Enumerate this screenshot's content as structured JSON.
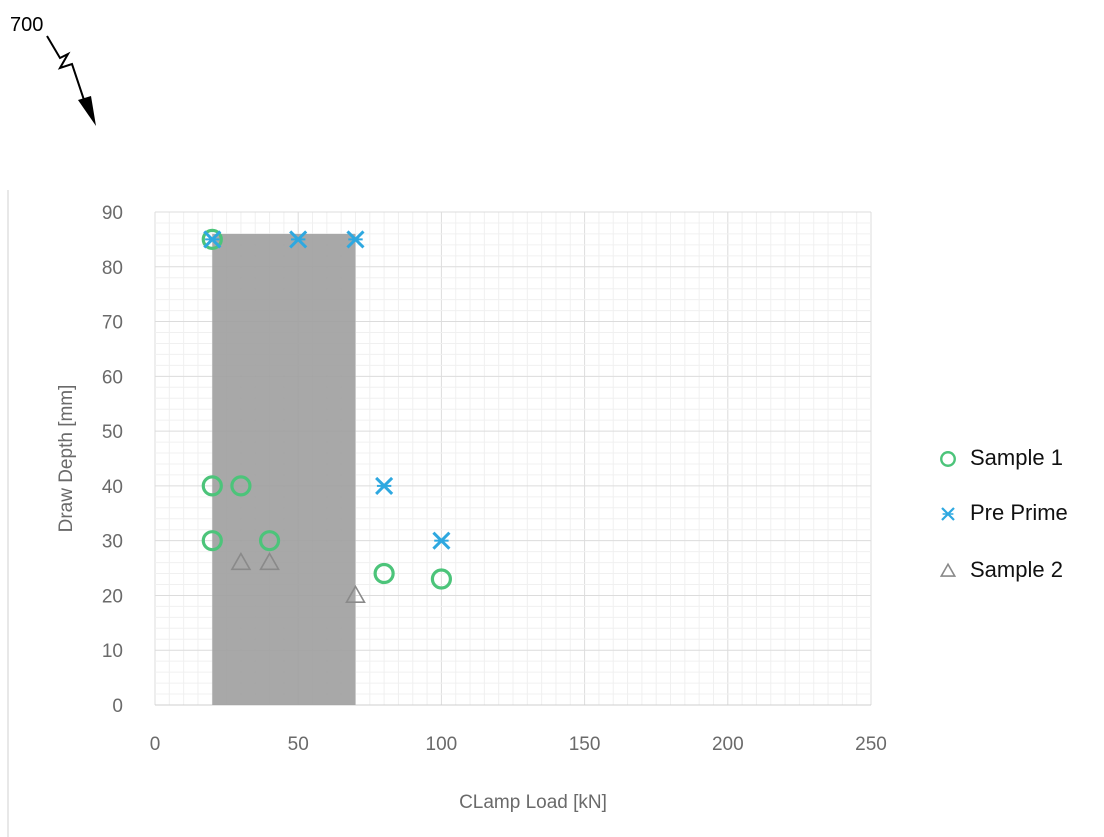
{
  "figure_label": "700",
  "chart_data": {
    "type": "scatter",
    "xlabel": "CLamp Load [kN]",
    "ylabel": "Draw Depth [mm]",
    "xlim": [
      0,
      250
    ],
    "ylim": [
      0,
      90
    ],
    "xticks": [
      0,
      50,
      100,
      150,
      200,
      250
    ],
    "yticks": [
      0,
      10,
      20,
      30,
      40,
      50,
      60,
      70,
      80,
      90
    ],
    "grid": true,
    "legend_position": "right",
    "shaded_region": {
      "x": [
        20,
        70
      ],
      "y": [
        0,
        86
      ],
      "color": "#9e9e9e"
    },
    "series": [
      {
        "name": "Sample 1",
        "marker": "circle",
        "color": "#4cc47a",
        "points": [
          [
            20,
            85
          ],
          [
            20,
            40
          ],
          [
            30,
            40
          ],
          [
            20,
            30
          ],
          [
            40,
            30
          ],
          [
            80,
            24
          ],
          [
            100,
            23
          ]
        ]
      },
      {
        "name": "Pre Prime",
        "marker": "star",
        "color": "#2ea8e0",
        "points": [
          [
            20,
            85
          ],
          [
            50,
            85
          ],
          [
            70,
            85
          ],
          [
            80,
            40
          ],
          [
            100,
            30
          ]
        ]
      },
      {
        "name": "Sample 2",
        "marker": "triangle",
        "color": "#8a8a8a",
        "points": [
          [
            30,
            26
          ],
          [
            40,
            26
          ],
          [
            70,
            20
          ]
        ]
      }
    ]
  }
}
